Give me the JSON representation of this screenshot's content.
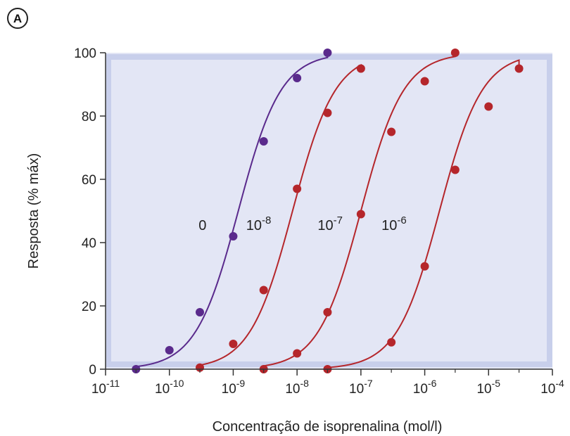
{
  "panel_label": "A",
  "chart_data": {
    "type": "line",
    "title": "",
    "xlabel": "Concentração de isoprenalina (mol/l)",
    "ylabel": "Resposta (% máx)",
    "x_scale": "log",
    "xlim": [
      1e-11,
      0.0001
    ],
    "ylim": [
      0,
      100
    ],
    "x_ticks": [
      {
        "base": "10",
        "exp": "-11"
      },
      {
        "base": "10",
        "exp": "-10"
      },
      {
        "base": "10",
        "exp": "-9"
      },
      {
        "base": "10",
        "exp": "-8"
      },
      {
        "base": "10",
        "exp": "-7"
      },
      {
        "base": "10",
        "exp": "-6"
      },
      {
        "base": "10",
        "exp": "-5"
      },
      {
        "base": "10",
        "exp": "-4"
      }
    ],
    "y_ticks": [
      "0",
      "20",
      "40",
      "60",
      "80",
      "100"
    ],
    "grid": false,
    "colors": {
      "plot_bg": "#e3e6f5",
      "plot_border": "#c8cfeb",
      "purple": "#5a2a8c",
      "red": "#b5262b"
    },
    "series": [
      {
        "label_base": "0",
        "label_exp": "",
        "color": "#5a2a8c",
        "ec50": 1.2e-09,
        "hill": 1.3,
        "label_at": {
          "x": 3.3e-10,
          "y": 44
        },
        "points": [
          {
            "x": 3e-11,
            "y": 0
          },
          {
            "x": 1e-10,
            "y": 6
          },
          {
            "x": 3e-10,
            "y": 18
          },
          {
            "x": 1e-09,
            "y": 42
          },
          {
            "x": 3e-09,
            "y": 72
          },
          {
            "x": 1e-08,
            "y": 92
          },
          {
            "x": 3e-08,
            "y": 100
          }
        ]
      },
      {
        "label_base": "10",
        "label_exp": "-8",
        "color": "#b5262b",
        "ec50": 8.5e-09,
        "hill": 1.3,
        "label_at": {
          "x": 2.5e-09,
          "y": 44
        },
        "points": [
          {
            "x": 3e-10,
            "y": 0.5
          },
          {
            "x": 1e-09,
            "y": 8
          },
          {
            "x": 3e-09,
            "y": 25
          },
          {
            "x": 1e-08,
            "y": 57
          },
          {
            "x": 3e-08,
            "y": 81
          },
          {
            "x": 1e-07,
            "y": 95
          }
        ]
      },
      {
        "label_base": "10",
        "label_exp": "-7",
        "color": "#b5262b",
        "ec50": 1e-07,
        "hill": 1.3,
        "label_at": {
          "x": 3.3e-08,
          "y": 44
        },
        "points": [
          {
            "x": 3e-09,
            "y": 0
          },
          {
            "x": 1e-08,
            "y": 5
          },
          {
            "x": 3e-08,
            "y": 18
          },
          {
            "x": 1e-07,
            "y": 49
          },
          {
            "x": 3e-07,
            "y": 75
          },
          {
            "x": 1e-06,
            "y": 91
          },
          {
            "x": 3e-06,
            "y": 100
          }
        ]
      },
      {
        "label_base": "10",
        "label_exp": "-6",
        "color": "#b5262b",
        "ec50": 1.7e-06,
        "hill": 1.3,
        "label_at": {
          "x": 3.3e-07,
          "y": 44
        },
        "points": [
          {
            "x": 3e-08,
            "y": 0
          },
          {
            "x": 3e-07,
            "y": 8.5
          },
          {
            "x": 1e-06,
            "y": 32.5
          },
          {
            "x": 3e-06,
            "y": 63
          },
          {
            "x": 1e-05,
            "y": 83
          },
          {
            "x": 3e-05,
            "y": 95
          }
        ]
      }
    ]
  }
}
